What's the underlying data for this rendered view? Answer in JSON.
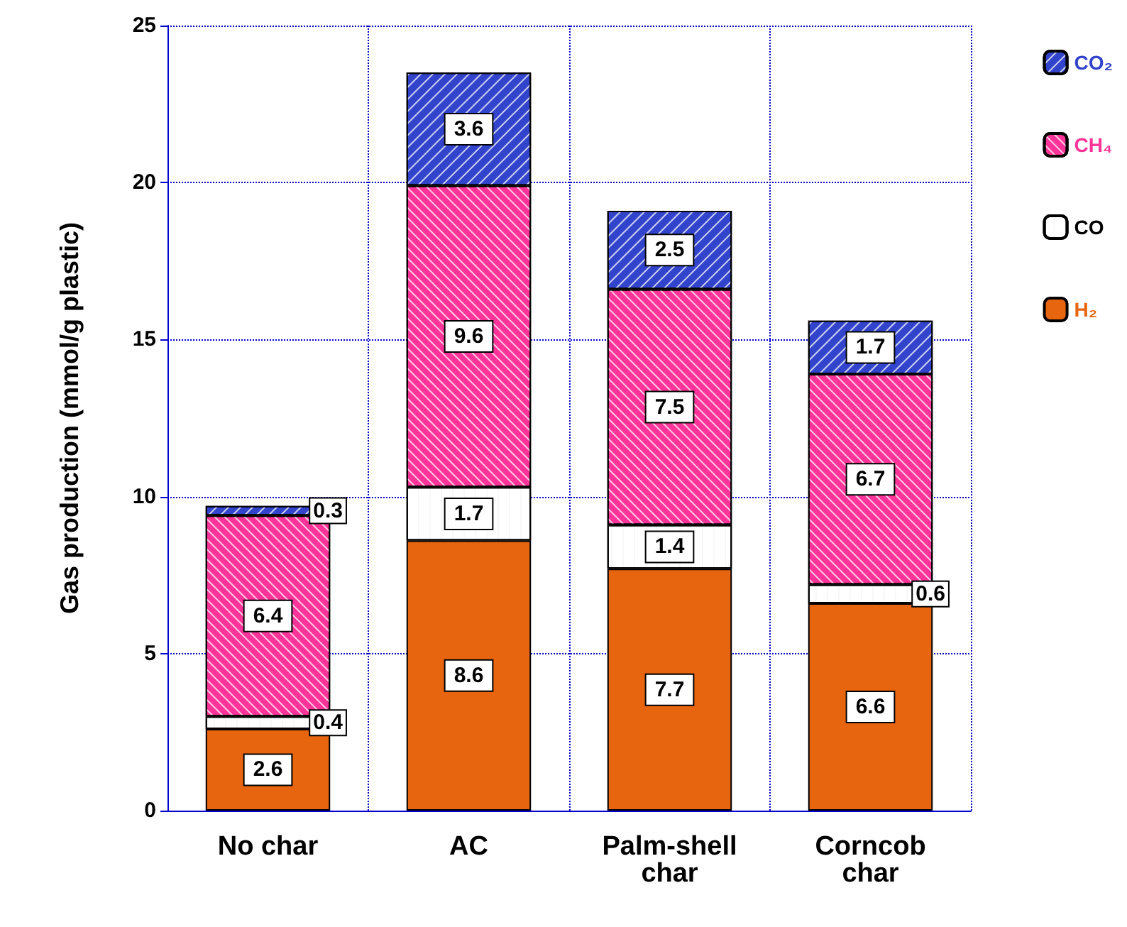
{
  "chart_data": {
    "type": "bar",
    "stacked": true,
    "ylabel": "Gas production (mmol/g plastic)",
    "categories": [
      "No char",
      "AC",
      "Palm-shell\nchar",
      "Corncob\nchar"
    ],
    "series": [
      {
        "name": "H₂",
        "color": "#e8650f",
        "values": [
          2.6,
          8.6,
          7.7,
          6.6
        ]
      },
      {
        "name": "CO",
        "color": "#ffffff",
        "values": [
          0.4,
          1.7,
          1.4,
          0.6
        ]
      },
      {
        "name": "CH₄",
        "color": "#ff3399",
        "values": [
          6.4,
          9.6,
          7.5,
          6.7
        ]
      },
      {
        "name": "CO₂",
        "color": "#3344cc",
        "values": [
          0.3,
          3.6,
          2.5,
          1.7
        ]
      }
    ],
    "ylim": [
      0,
      25
    ],
    "yticks": [
      0,
      5,
      10,
      15,
      20,
      25
    ],
    "grid": true,
    "legend": "right",
    "data_labels": true
  }
}
